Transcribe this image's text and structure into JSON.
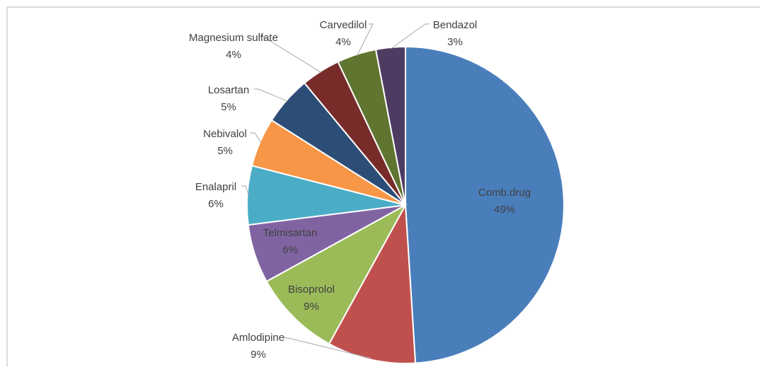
{
  "chart_data": {
    "type": "pie",
    "categories": [
      "Comb.drug",
      "Amlodipine",
      "Bisoprolol",
      "Telmisartan",
      "Enalapril",
      "Nebivalol",
      "Losartan",
      "Magnesium sulfate",
      "Carvedilol",
      "Bendazol"
    ],
    "values": [
      49,
      9,
      9,
      6,
      6,
      5,
      5,
      4,
      4,
      3
    ],
    "value_labels": [
      "49%",
      "9%",
      "9%",
      "6%",
      "6%",
      "5%",
      "5%",
      "4%",
      "4%",
      "3%"
    ],
    "colors": [
      "#4a7ebb",
      "#c0504d",
      "#9bbb59",
      "#8064a2",
      "#4bacc6",
      "#f79646",
      "#2c4d75",
      "#772c2a",
      "#5f7530",
      "#4d3b62"
    ]
  }
}
